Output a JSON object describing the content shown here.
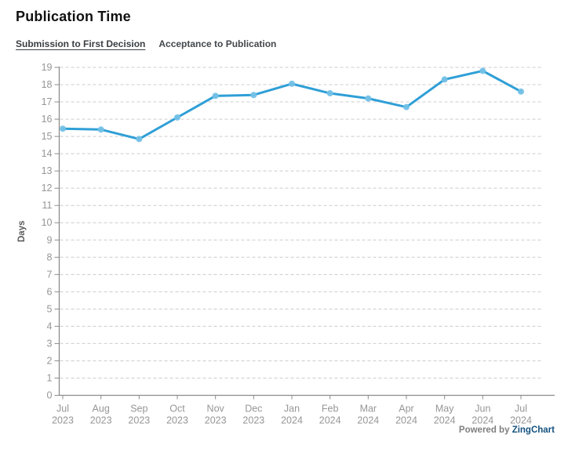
{
  "page": {
    "title": "Publication Time"
  },
  "tabs": [
    {
      "label": "Submission to First Decision",
      "active": true
    },
    {
      "label": "Acceptance to Publication",
      "active": false
    }
  ],
  "footer": {
    "powered_by": "Powered by",
    "brand": "ZingChart"
  },
  "colors": {
    "line": "#2f9fd6",
    "marker_fill": "#74c1e7",
    "grid": "#cccccc",
    "axis": "#8c8c8c",
    "tick_label": "#969696",
    "axis_title": "#5a5a5a"
  },
  "chart_data": {
    "type": "line",
    "title": "Publication Time",
    "xlabel": "",
    "ylabel": "Days",
    "ylim": [
      0,
      19
    ],
    "ytick_step": 1,
    "grid": "horizontal-dashed",
    "legend": "none",
    "categories": [
      "Jul 2023",
      "Aug 2023",
      "Sep 2023",
      "Oct 2023",
      "Nov 2023",
      "Dec 2023",
      "Jan 2024",
      "Feb 2024",
      "Mar 2024",
      "Apr 2024",
      "May 2024",
      "Jun 2024",
      "Jul 2024"
    ],
    "series": [
      {
        "name": "Submission to First Decision",
        "values": [
          15.45,
          15.4,
          14.85,
          16.1,
          17.35,
          17.4,
          18.05,
          17.5,
          17.2,
          16.7,
          18.3,
          18.8,
          17.6
        ]
      }
    ]
  }
}
